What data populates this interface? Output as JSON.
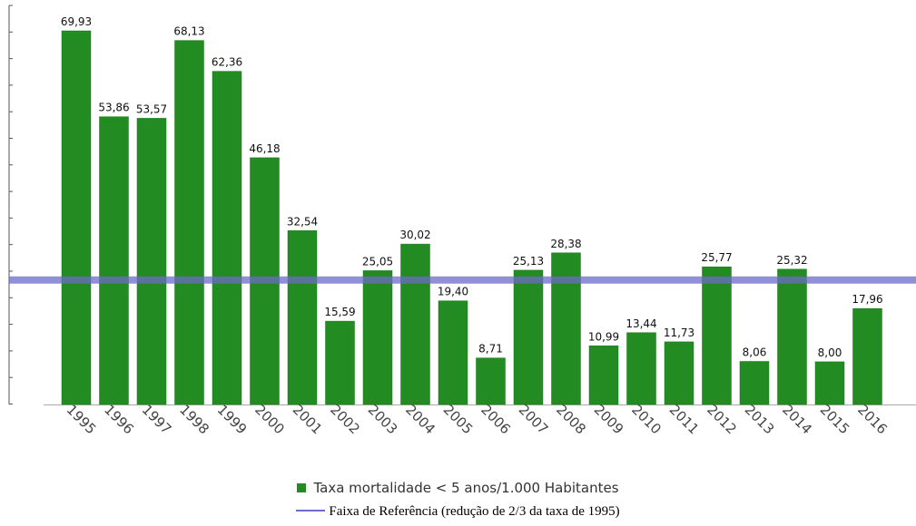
{
  "chart_data": {
    "type": "bar",
    "categories": [
      "1995",
      "1996",
      "1997",
      "1998",
      "1999",
      "2000",
      "2001",
      "2002",
      "2003",
      "2004",
      "2005",
      "2006",
      "2007",
      "2008",
      "2009",
      "2010",
      "2011",
      "2012",
      "2013",
      "2014",
      "2015",
      "2016"
    ],
    "series": [
      {
        "name": "Taxa mortalidade < 5 anos/1.000 Habitantes",
        "values": [
          69.93,
          53.86,
          53.57,
          68.13,
          62.36,
          46.18,
          32.54,
          15.59,
          25.05,
          30.02,
          19.4,
          8.71,
          25.13,
          28.38,
          10.99,
          13.44,
          11.73,
          25.77,
          8.06,
          25.32,
          8.0,
          17.96
        ],
        "labels": [
          "69,93",
          "53,86",
          "53,57",
          "68,13",
          "62,36",
          "46,18",
          "32,54",
          "15,59",
          "25,05",
          "30,02",
          "19,40",
          "8,71",
          "25,13",
          "28,38",
          "10,99",
          "13,44",
          "11,73",
          "25,77",
          "8,06",
          "25,32",
          "8,00",
          "17,96"
        ],
        "color": "#228b22"
      }
    ],
    "reference_line": {
      "name": "Faixa de Referência (redução de 2/3 da taxa de 1995)",
      "value": 23.31,
      "color": "#6b6bc8"
    },
    "ylim": [
      0,
      74
    ],
    "grid": false,
    "legend_position": "bottom"
  }
}
